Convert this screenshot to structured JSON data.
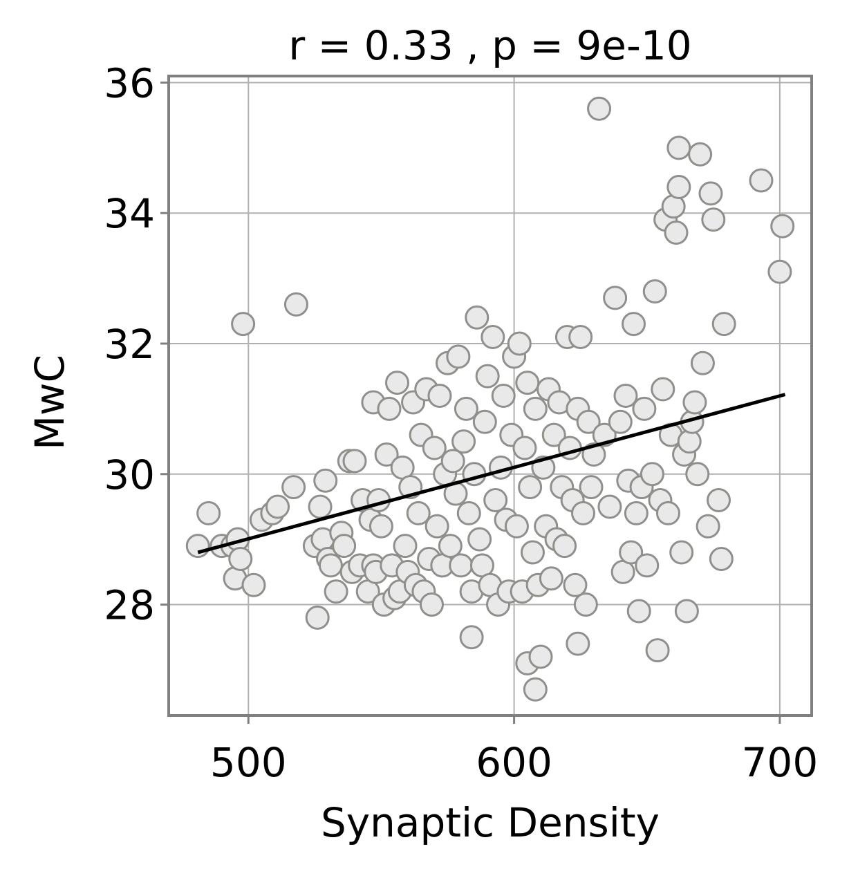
{
  "chart_data": {
    "type": "scatter",
    "title": "r = 0.33 , p = 9e-10",
    "xlabel": "Synaptic Density",
    "ylabel": "MwC",
    "xlim": [
      470,
      712
    ],
    "ylim": [
      26.3,
      36.1
    ],
    "xticks": [
      500,
      600,
      700
    ],
    "yticks": [
      28,
      30,
      32,
      34,
      36
    ],
    "grid": true,
    "colors": {
      "marker_fill": "#e9e9e9",
      "marker_edge": "#8f8f8b",
      "fit_line": "#000000",
      "frame": "#808080"
    },
    "fit_line": {
      "x": [
        481,
        702
      ],
      "y": [
        28.8,
        31.22
      ]
    },
    "points": [
      [
        481,
        28.9
      ],
      [
        485,
        29.4
      ],
      [
        490,
        28.9
      ],
      [
        494,
        28.9
      ],
      [
        495,
        28.4
      ],
      [
        496,
        29.0
      ],
      [
        497,
        28.7
      ],
      [
        498,
        32.3
      ],
      [
        502,
        28.3
      ],
      [
        505,
        29.3
      ],
      [
        509,
        29.4
      ],
      [
        511,
        29.5
      ],
      [
        517,
        29.8
      ],
      [
        518,
        32.6
      ],
      [
        525,
        28.9
      ],
      [
        526,
        27.8
      ],
      [
        527,
        29.5
      ],
      [
        528,
        29.0
      ],
      [
        529,
        29.9
      ],
      [
        530,
        28.7
      ],
      [
        531,
        28.6
      ],
      [
        533,
        28.2
      ],
      [
        535,
        29.1
      ],
      [
        536,
        28.9
      ],
      [
        538,
        30.2
      ],
      [
        539,
        28.5
      ],
      [
        540,
        30.2
      ],
      [
        542,
        28.6
      ],
      [
        543,
        29.6
      ],
      [
        545,
        28.2
      ],
      [
        546,
        29.3
      ],
      [
        547,
        28.6
      ],
      [
        547,
        31.1
      ],
      [
        548,
        28.5
      ],
      [
        549,
        29.6
      ],
      [
        550,
        29.2
      ],
      [
        551,
        28.0
      ],
      [
        552,
        30.3
      ],
      [
        553,
        31.0
      ],
      [
        554,
        28.6
      ],
      [
        555,
        28.1
      ],
      [
        556,
        31.4
      ],
      [
        557,
        28.2
      ],
      [
        558,
        30.1
      ],
      [
        559,
        28.9
      ],
      [
        560,
        28.5
      ],
      [
        561,
        29.8
      ],
      [
        562,
        31.1
      ],
      [
        563,
        28.3
      ],
      [
        564,
        29.4
      ],
      [
        565,
        30.6
      ],
      [
        566,
        28.2
      ],
      [
        567,
        31.3
      ],
      [
        568,
        28.7
      ],
      [
        569,
        28.0
      ],
      [
        570,
        30.4
      ],
      [
        571,
        29.2
      ],
      [
        572,
        31.2
      ],
      [
        573,
        28.6
      ],
      [
        574,
        30.0
      ],
      [
        575,
        31.7
      ],
      [
        576,
        28.9
      ],
      [
        577,
        30.2
      ],
      [
        578,
        29.7
      ],
      [
        579,
        31.8
      ],
      [
        580,
        28.6
      ],
      [
        581,
        30.5
      ],
      [
        582,
        31.0
      ],
      [
        583,
        29.4
      ],
      [
        584,
        28.2
      ],
      [
        584,
        27.5
      ],
      [
        585,
        30.0
      ],
      [
        586,
        32.4
      ],
      [
        587,
        29.0
      ],
      [
        588,
        28.6
      ],
      [
        589,
        30.8
      ],
      [
        590,
        31.5
      ],
      [
        591,
        28.3
      ],
      [
        592,
        32.1
      ],
      [
        593,
        29.6
      ],
      [
        594,
        28.0
      ],
      [
        595,
        30.1
      ],
      [
        596,
        31.2
      ],
      [
        597,
        29.3
      ],
      [
        598,
        28.2
      ],
      [
        599,
        30.6
      ],
      [
        600,
        31.8
      ],
      [
        601,
        29.2
      ],
      [
        602,
        32.0
      ],
      [
        603,
        28.2
      ],
      [
        604,
        30.4
      ],
      [
        605,
        31.4
      ],
      [
        605,
        27.1
      ],
      [
        606,
        29.8
      ],
      [
        607,
        28.8
      ],
      [
        608,
        26.7
      ],
      [
        608,
        31.0
      ],
      [
        609,
        28.3
      ],
      [
        610,
        27.2
      ],
      [
        611,
        30.1
      ],
      [
        612,
        29.2
      ],
      [
        613,
        31.3
      ],
      [
        614,
        28.4
      ],
      [
        615,
        30.6
      ],
      [
        616,
        29.0
      ],
      [
        617,
        31.1
      ],
      [
        618,
        29.8
      ],
      [
        619,
        28.9
      ],
      [
        620,
        32.1
      ],
      [
        621,
        30.4
      ],
      [
        622,
        29.6
      ],
      [
        623,
        28.3
      ],
      [
        624,
        31.0
      ],
      [
        624,
        27.4
      ],
      [
        625,
        32.1
      ],
      [
        626,
        29.4
      ],
      [
        627,
        28.0
      ],
      [
        628,
        30.8
      ],
      [
        629,
        29.8
      ],
      [
        630,
        30.3
      ],
      [
        632,
        35.6
      ],
      [
        634,
        30.6
      ],
      [
        636,
        29.5
      ],
      [
        638,
        32.7
      ],
      [
        640,
        30.8
      ],
      [
        641,
        28.5
      ],
      [
        642,
        31.2
      ],
      [
        643,
        29.9
      ],
      [
        644,
        28.8
      ],
      [
        645,
        32.3
      ],
      [
        646,
        29.4
      ],
      [
        647,
        27.9
      ],
      [
        648,
        29.8
      ],
      [
        649,
        31.0
      ],
      [
        650,
        28.6
      ],
      [
        652,
        30.0
      ],
      [
        653,
        32.8
      ],
      [
        654,
        27.3
      ],
      [
        655,
        29.6
      ],
      [
        656,
        31.3
      ],
      [
        657,
        33.9
      ],
      [
        658,
        29.4
      ],
      [
        659,
        30.6
      ],
      [
        660,
        34.1
      ],
      [
        661,
        33.7
      ],
      [
        662,
        34.4
      ],
      [
        662,
        35.0
      ],
      [
        663,
        28.8
      ],
      [
        664,
        30.3
      ],
      [
        665,
        27.9
      ],
      [
        666,
        30.5
      ],
      [
        667,
        30.8
      ],
      [
        668,
        31.1
      ],
      [
        669,
        30.0
      ],
      [
        670,
        34.9
      ],
      [
        671,
        31.7
      ],
      [
        673,
        29.2
      ],
      [
        674,
        34.3
      ],
      [
        675,
        33.9
      ],
      [
        677,
        29.6
      ],
      [
        678,
        28.7
      ],
      [
        679,
        32.3
      ],
      [
        693,
        34.5
      ],
      [
        700,
        33.1
      ],
      [
        701,
        33.8
      ]
    ]
  }
}
